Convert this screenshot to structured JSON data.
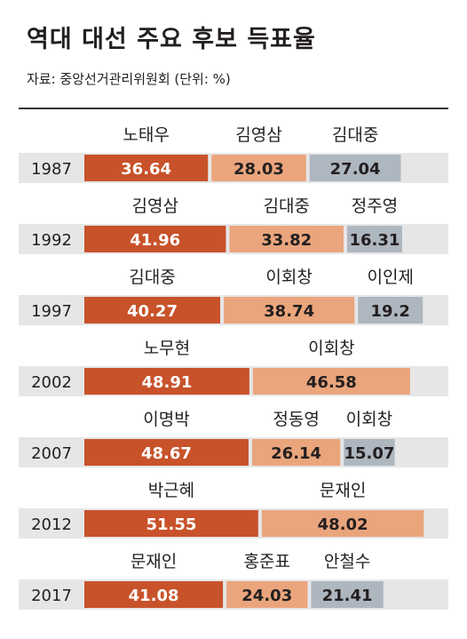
{
  "title": "역대 대선 주요 후보 득표율",
  "subtitle": "자료: 중앙선거관리위원회 (단위: %)",
  "colors": {
    "first": "#c8522a",
    "second": "#eaa57c",
    "third": "#aeb6bf",
    "band": "#e6e6e7",
    "line": "#333333"
  },
  "chart_data": {
    "type": "bar",
    "stacked": true,
    "orientation": "horizontal",
    "title": "역대 대선 주요 후보 득표율",
    "subtitle": "자료: 중앙선거관리위원회 (단위: %)",
    "categories": [
      "1987",
      "1992",
      "1997",
      "2002",
      "2007",
      "2012",
      "2017"
    ],
    "rows": [
      {
        "year": "1987",
        "candidates": [
          {
            "name": "노태우",
            "value": 36.64,
            "label": "36.64",
            "rank": "first"
          },
          {
            "name": "김영삼",
            "value": 28.03,
            "label": "28.03",
            "rank": "second"
          },
          {
            "name": "김대중",
            "value": 27.04,
            "label": "27.04",
            "rank": "third"
          }
        ]
      },
      {
        "year": "1992",
        "candidates": [
          {
            "name": "김영삼",
            "value": 41.96,
            "label": "41.96",
            "rank": "first"
          },
          {
            "name": "김대중",
            "value": 33.82,
            "label": "33.82",
            "rank": "second"
          },
          {
            "name": "정주영",
            "value": 16.31,
            "label": "16.31",
            "rank": "third"
          }
        ]
      },
      {
        "year": "1997",
        "candidates": [
          {
            "name": "김대중",
            "value": 40.27,
            "label": "40.27",
            "rank": "first"
          },
          {
            "name": "이회창",
            "value": 38.74,
            "label": "38.74",
            "rank": "second"
          },
          {
            "name": "이인제",
            "value": 19.2,
            "label": "19.2",
            "rank": "third"
          }
        ]
      },
      {
        "year": "2002",
        "candidates": [
          {
            "name": "노무현",
            "value": 48.91,
            "label": "48.91",
            "rank": "first"
          },
          {
            "name": "이회창",
            "value": 46.58,
            "label": "46.58",
            "rank": "second"
          }
        ]
      },
      {
        "year": "2007",
        "candidates": [
          {
            "name": "이명박",
            "value": 48.67,
            "label": "48.67",
            "rank": "first"
          },
          {
            "name": "정동영",
            "value": 26.14,
            "label": "26.14",
            "rank": "second"
          },
          {
            "name": "이회창",
            "value": 15.07,
            "label": "15.07",
            "rank": "third"
          }
        ]
      },
      {
        "year": "2012",
        "candidates": [
          {
            "name": "박근혜",
            "value": 51.55,
            "label": "51.55",
            "rank": "first"
          },
          {
            "name": "문재인",
            "value": 48.02,
            "label": "48.02",
            "rank": "second"
          }
        ]
      },
      {
        "year": "2017",
        "candidates": [
          {
            "name": "문재인",
            "value": 41.08,
            "label": "41.08",
            "rank": "first"
          },
          {
            "name": "홍준표",
            "value": 24.03,
            "label": "24.03",
            "rank": "second"
          },
          {
            "name": "안철수",
            "value": 21.41,
            "label": "21.41",
            "rank": "third"
          }
        ]
      }
    ],
    "xlim": [
      0,
      100
    ]
  }
}
